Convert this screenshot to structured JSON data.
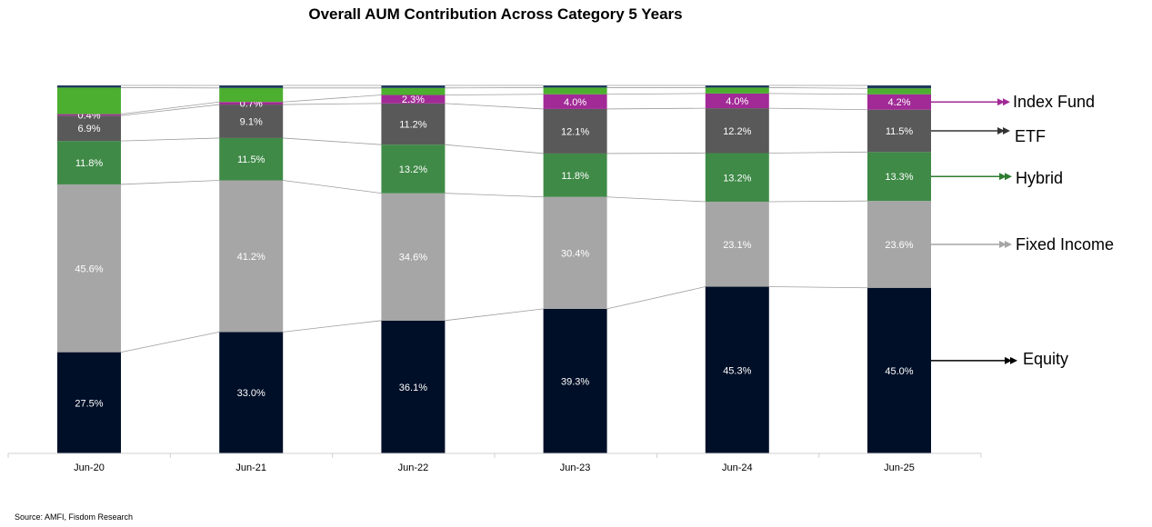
{
  "chart_data": {
    "type": "bar",
    "stacked": true,
    "title": "Overall AUM Contribution Across Category 5 Years",
    "categories": [
      "Jun-20",
      "Jun-21",
      "Jun-22",
      "Jun-23",
      "Jun-24",
      "Jun-25"
    ],
    "series": [
      {
        "name": "Equity",
        "values": [
          27.5,
          33.0,
          36.1,
          39.3,
          45.3,
          45.0
        ],
        "labels": [
          "27.5%",
          "33.0%",
          "36.1%",
          "39.3%",
          "45.3%",
          "45.0%"
        ],
        "color": "#000f28",
        "arrow_color": "#000000"
      },
      {
        "name": "Fixed Income",
        "values": [
          45.6,
          41.2,
          34.6,
          30.4,
          23.1,
          23.6
        ],
        "labels": [
          "45.6%",
          "41.2%",
          "34.6%",
          "30.4%",
          "23.1%",
          "23.6%"
        ],
        "color": "#a6a6a6",
        "arrow_color": "#a6a6a6"
      },
      {
        "name": "Hybrid",
        "values": [
          11.8,
          11.5,
          13.2,
          11.8,
          13.2,
          13.3
        ],
        "labels": [
          "11.8%",
          "11.5%",
          "13.2%",
          "11.8%",
          "13.2%",
          "13.3%"
        ],
        "color": "#3f8a47",
        "arrow_color": "#2e7d32"
      },
      {
        "name": "ETF",
        "values": [
          6.9,
          9.1,
          11.2,
          12.1,
          12.2,
          11.5
        ],
        "labels": [
          "6.9%",
          "9.1%",
          "11.2%",
          "12.1%",
          "12.2%",
          "11.5%"
        ],
        "color": "#595959",
        "arrow_color": "#333333"
      },
      {
        "name": "Index Fund",
        "values": [
          0.4,
          0.7,
          2.3,
          4.0,
          4.0,
          4.2
        ],
        "labels": [
          "0.4%",
          "0.7%",
          "2.3%",
          "4.0%",
          "4.0%",
          "4.2%"
        ],
        "color": "#a12a96",
        "arrow_color": "#a12a96"
      },
      {
        "name": "",
        "values": [
          7.2,
          3.8,
          1.9,
          1.8,
          1.6,
          1.6
        ],
        "labels": [
          "",
          "",
          "",
          "",
          "",
          ""
        ],
        "color": "#4caf2f",
        "arrow_color": ""
      },
      {
        "name": "",
        "values": [
          0.6,
          0.7,
          0.7,
          0.6,
          0.6,
          0.8
        ],
        "labels": [
          "",
          "",
          "",
          "",
          "",
          ""
        ],
        "color": "#1f3b5c",
        "arrow_color": ""
      }
    ],
    "ylim": [
      0,
      100
    ],
    "grid": false,
    "legend": "right",
    "source": "Source: AMFI, Fisdom Research"
  }
}
